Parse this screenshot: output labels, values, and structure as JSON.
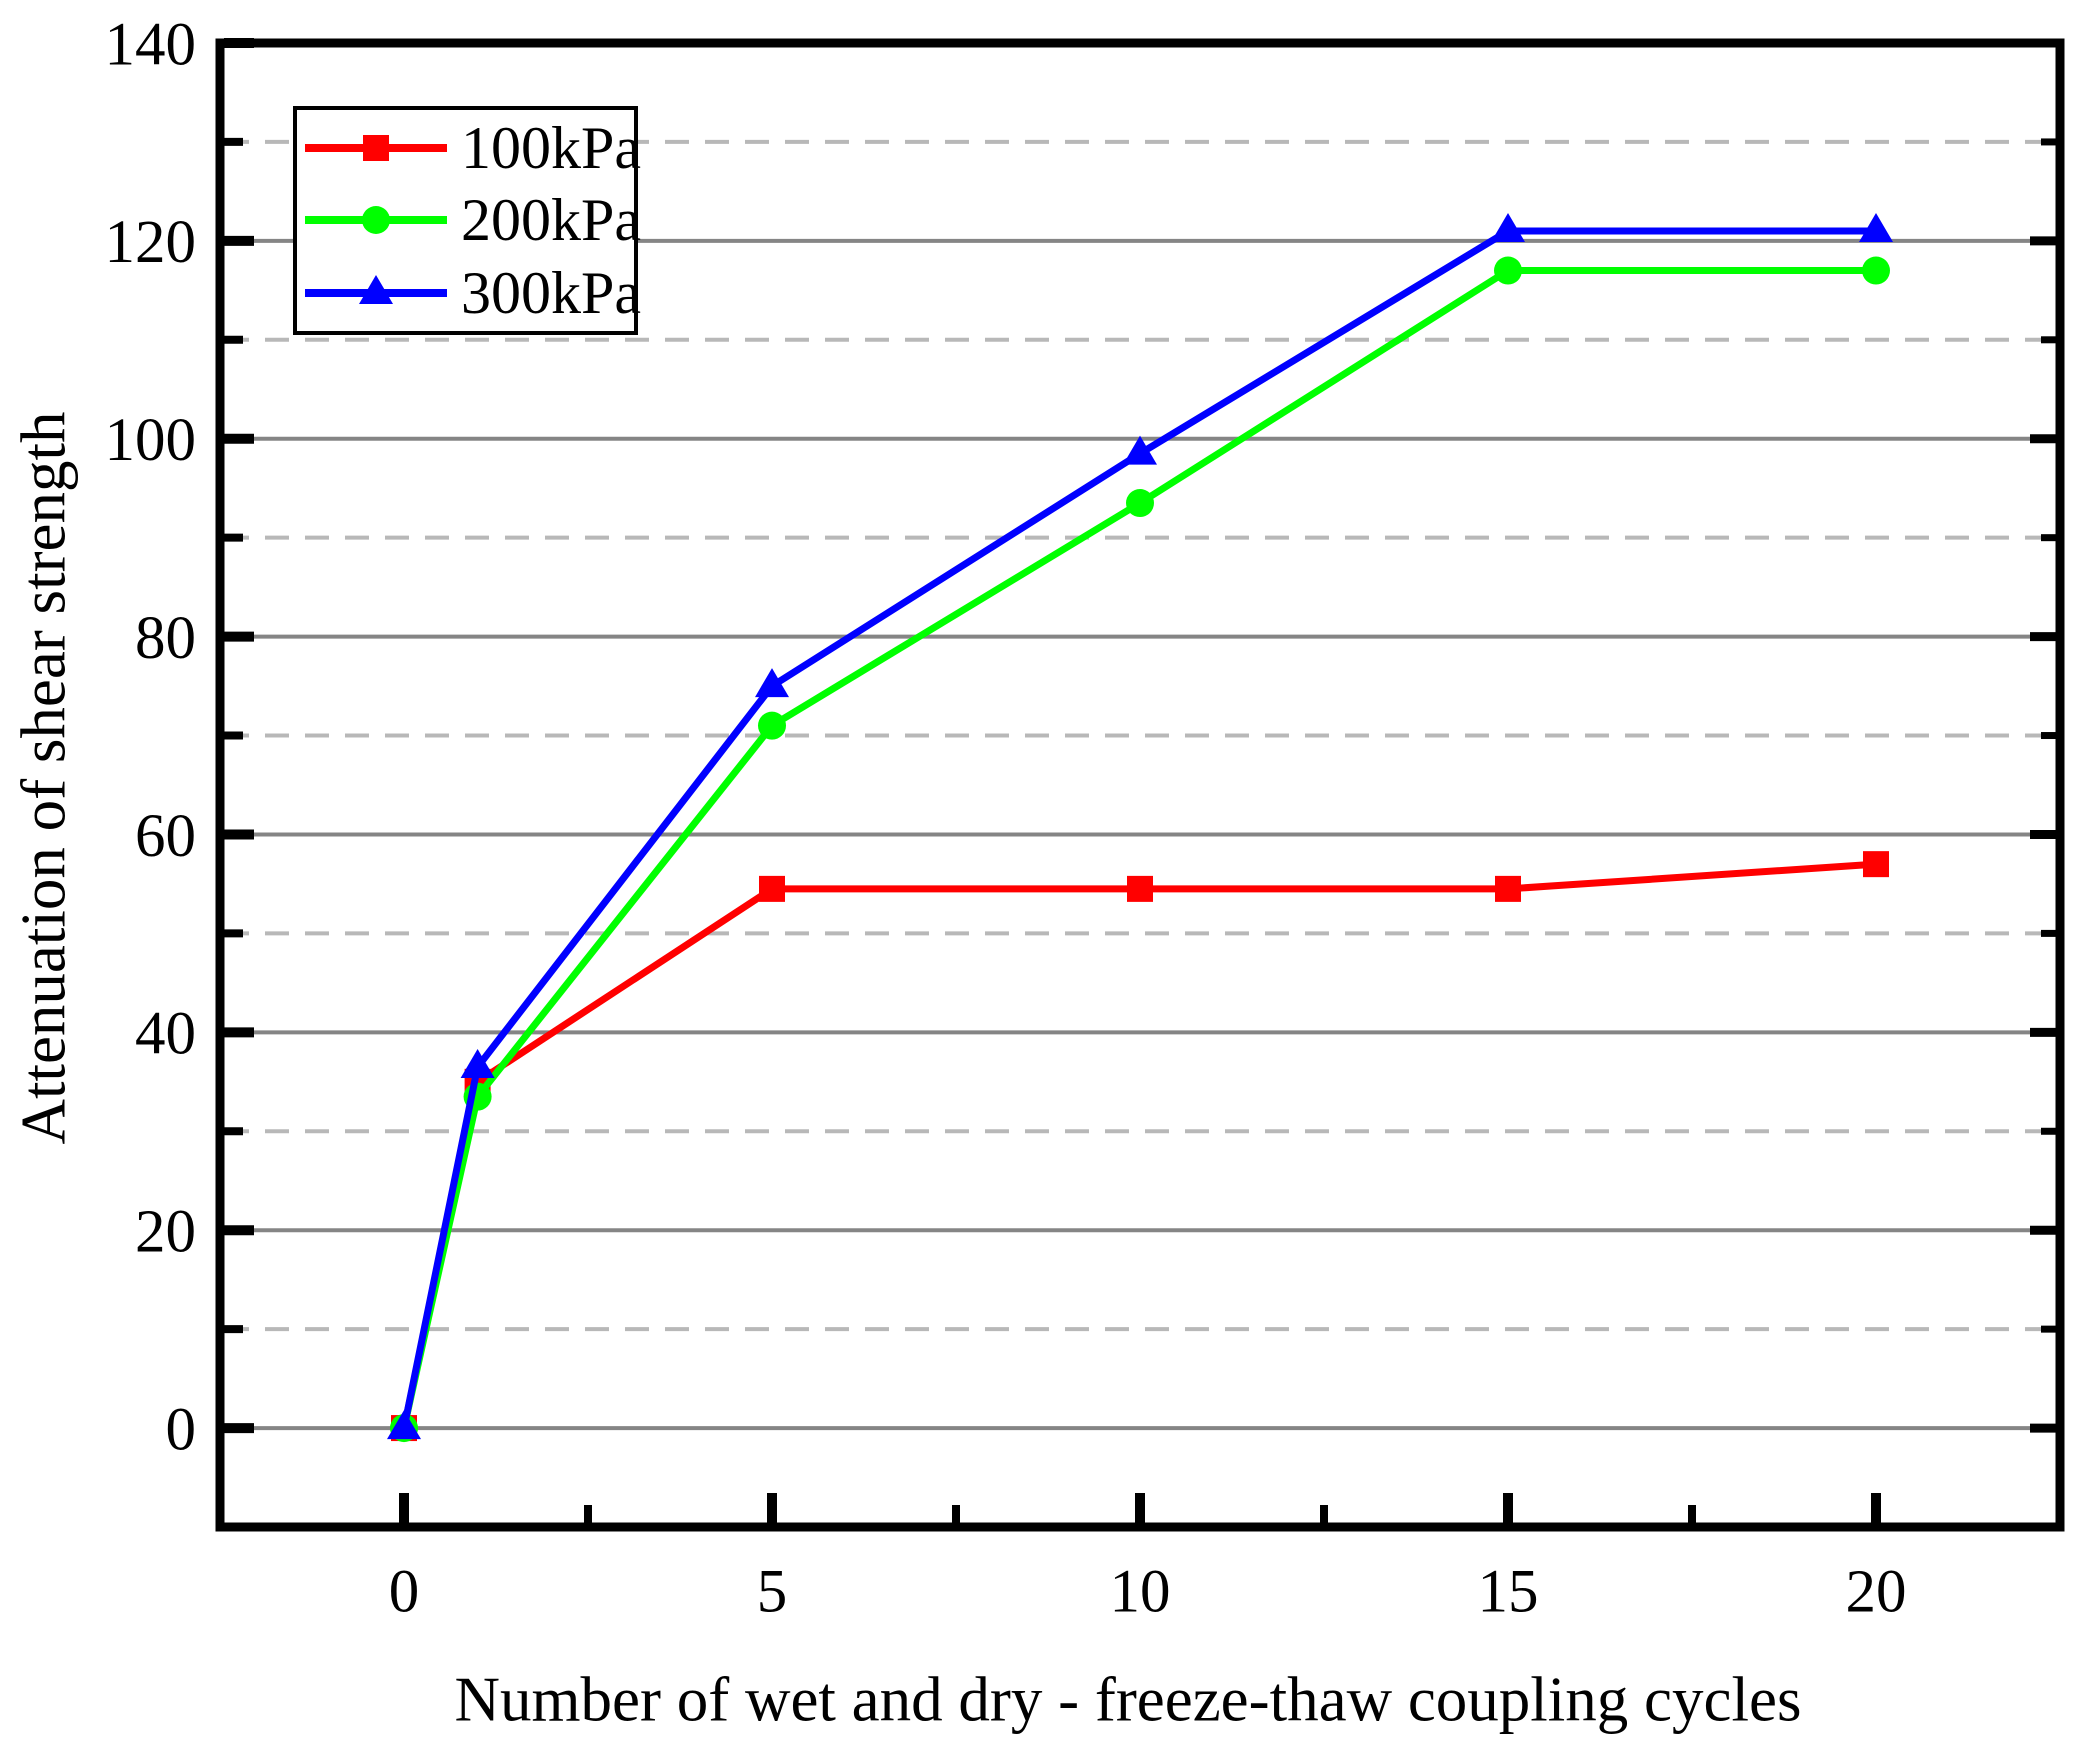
{
  "chart_data": {
    "type": "line",
    "title": "",
    "xlabel": "Number of wet and dry - freeze-thaw coupling cycles",
    "ylabel": "Attenuation of shear strength",
    "xlim": [
      -2.5,
      22.5
    ],
    "ylim": [
      -10,
      140
    ],
    "x_major_ticks": [
      0,
      5,
      10,
      15,
      20
    ],
    "x_minor_ticks": [
      2.5,
      7.5,
      12.5,
      17.5
    ],
    "y_major_ticks": [
      0,
      20,
      40,
      60,
      80,
      100,
      120,
      140
    ],
    "y_minor_ticks": [
      10,
      30,
      50,
      70,
      90,
      110,
      130
    ],
    "grid": {
      "major_color": "#858585",
      "minor_color": "#b8b8b8",
      "major_style": "solid",
      "minor_style": "dashed",
      "vertical": false
    },
    "x": [
      0,
      1,
      5,
      10,
      15,
      20
    ],
    "series": [
      {
        "name": "100kPa",
        "color": "#ff0000",
        "marker": "square",
        "values": [
          0,
          35,
          54.5,
          54.5,
          54.5,
          57
        ]
      },
      {
        "name": "200kPa",
        "color": "#00ff00",
        "marker": "circle",
        "values": [
          0,
          33.5,
          71,
          93.5,
          117,
          117
        ]
      },
      {
        "name": "300kPa",
        "color": "#0000ff",
        "marker": "triangle",
        "values": [
          0,
          36.5,
          75,
          98.5,
          121,
          121
        ]
      }
    ],
    "legend": {
      "position": "top-left",
      "entries": [
        "100kPa",
        "200kPa",
        "300kPa"
      ]
    }
  }
}
